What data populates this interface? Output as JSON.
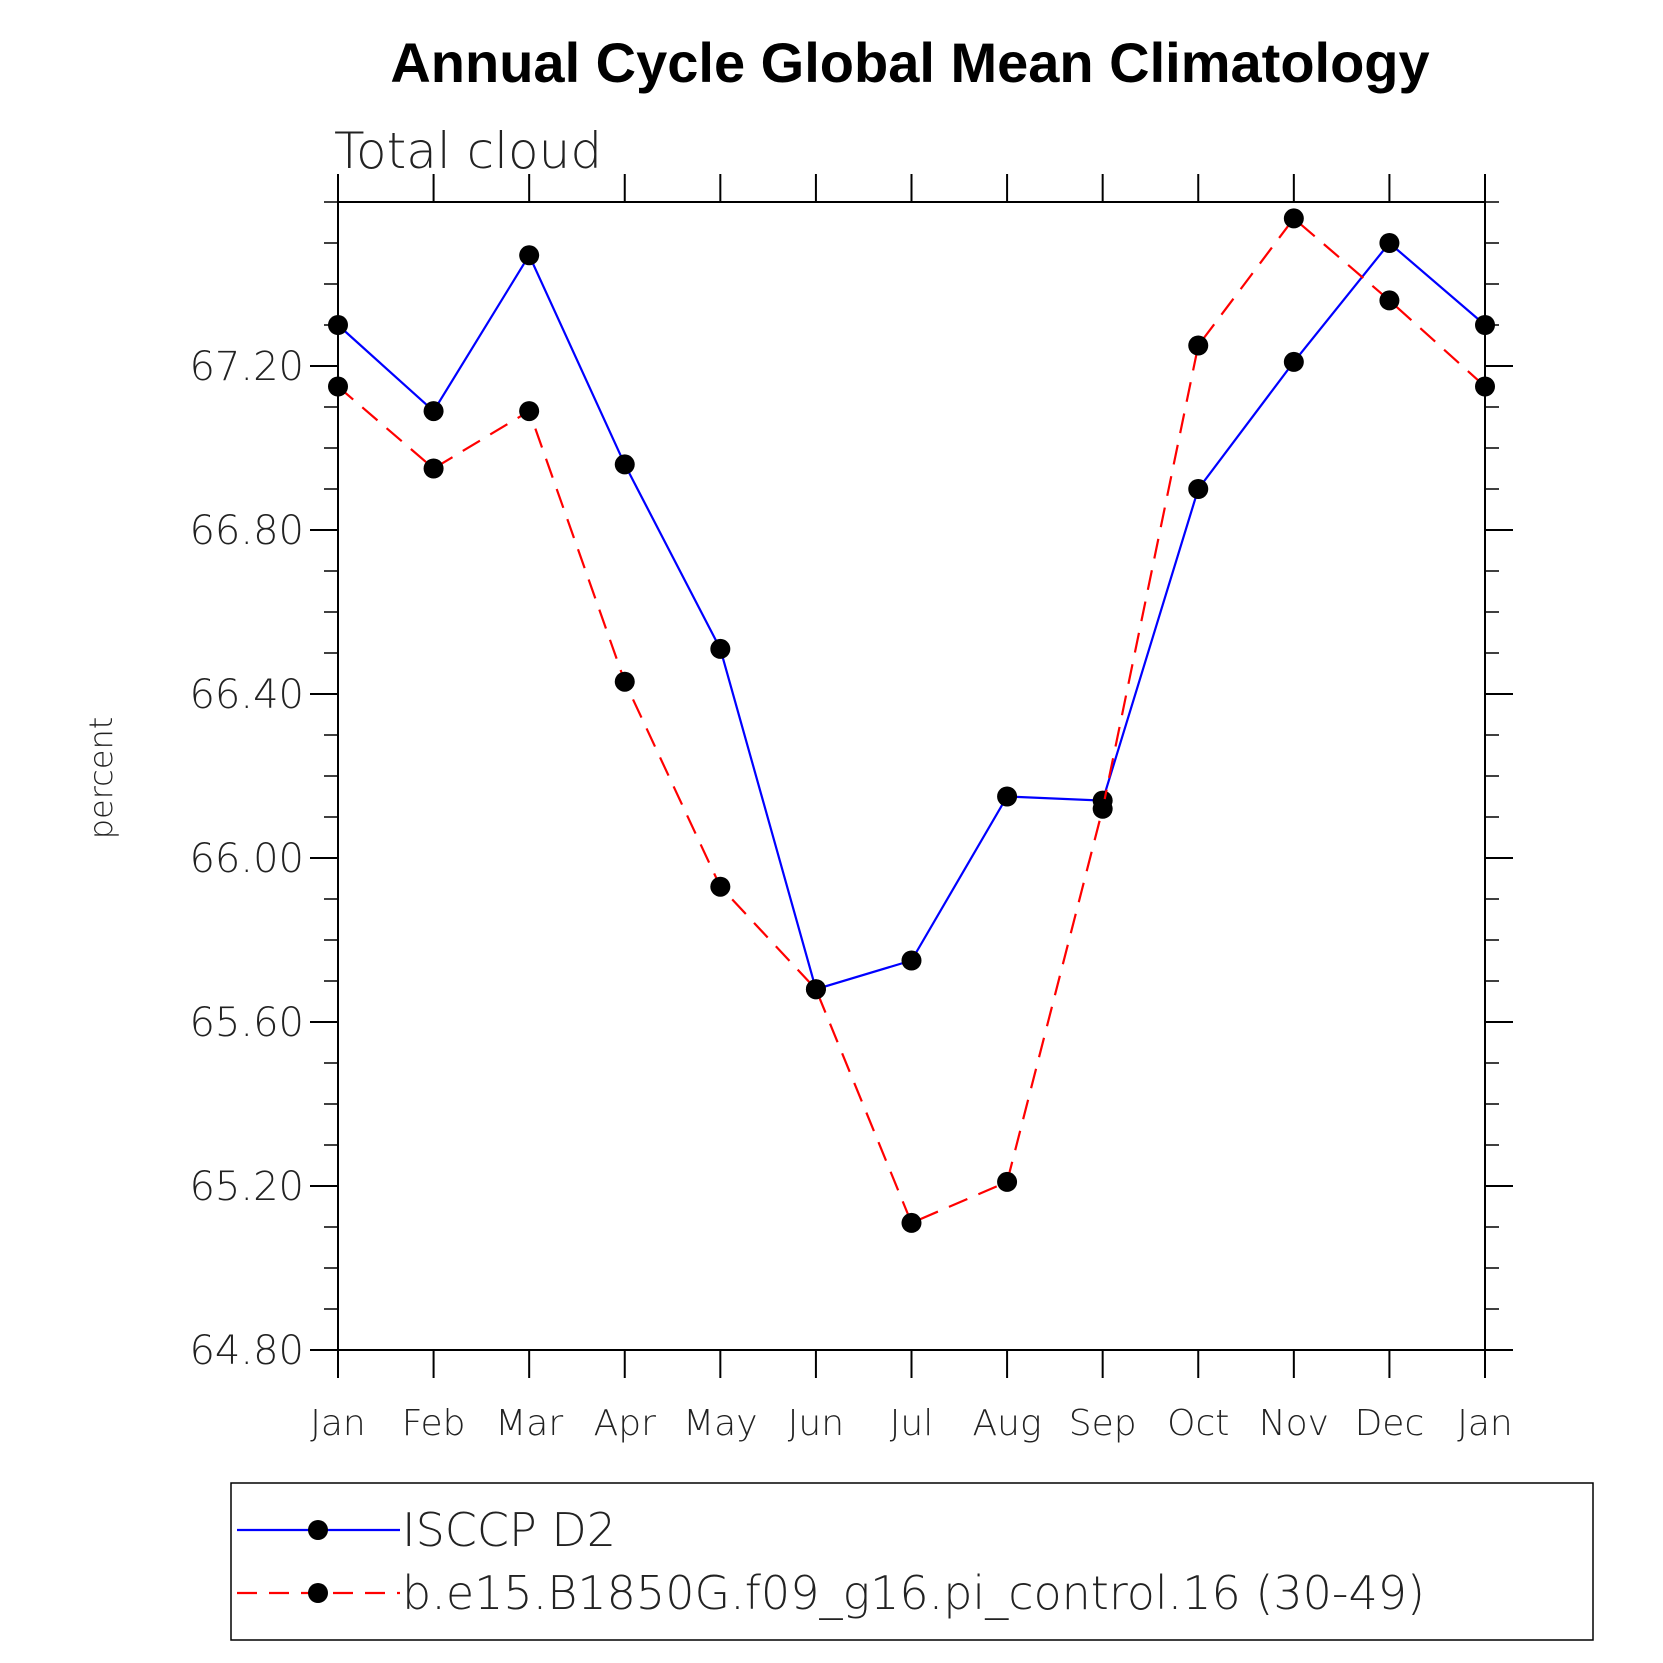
{
  "chart_data": {
    "type": "line",
    "title": "Annual Cycle Global Mean Climatology",
    "subtitle": "Total cloud",
    "xlabel": "",
    "ylabel": "percent",
    "categories": [
      "Jan",
      "Feb",
      "Mar",
      "Apr",
      "May",
      "Jun",
      "Jul",
      "Aug",
      "Sep",
      "Oct",
      "Nov",
      "Dec",
      "Jan"
    ],
    "ylim": [
      64.8,
      67.6
    ],
    "yticks": [
      64.8,
      65.2,
      65.6,
      66.0,
      66.4,
      66.8,
      67.2
    ],
    "ytick_labels": [
      "64.80",
      "65.20",
      "65.60",
      "66.00",
      "66.40",
      "66.80",
      "67.20"
    ],
    "series": [
      {
        "name": "ISCCP D2",
        "color": "#0000ff",
        "dash": "solid",
        "marker": "circle",
        "values": [
          67.3,
          67.09,
          67.47,
          66.96,
          66.51,
          65.68,
          65.75,
          66.15,
          66.14,
          66.9,
          67.21,
          67.5,
          67.3
        ]
      },
      {
        "name": "b.e15.B1850G.f09_g16.pi_control.16 (30-49)",
        "color": "#ff0000",
        "dash": "dashed",
        "marker": "circle",
        "values": [
          67.15,
          66.95,
          67.09,
          66.43,
          65.93,
          65.68,
          65.11,
          65.21,
          66.12,
          67.25,
          67.56,
          67.36,
          67.15
        ]
      }
    ],
    "legend": "bottom",
    "grid": false
  }
}
